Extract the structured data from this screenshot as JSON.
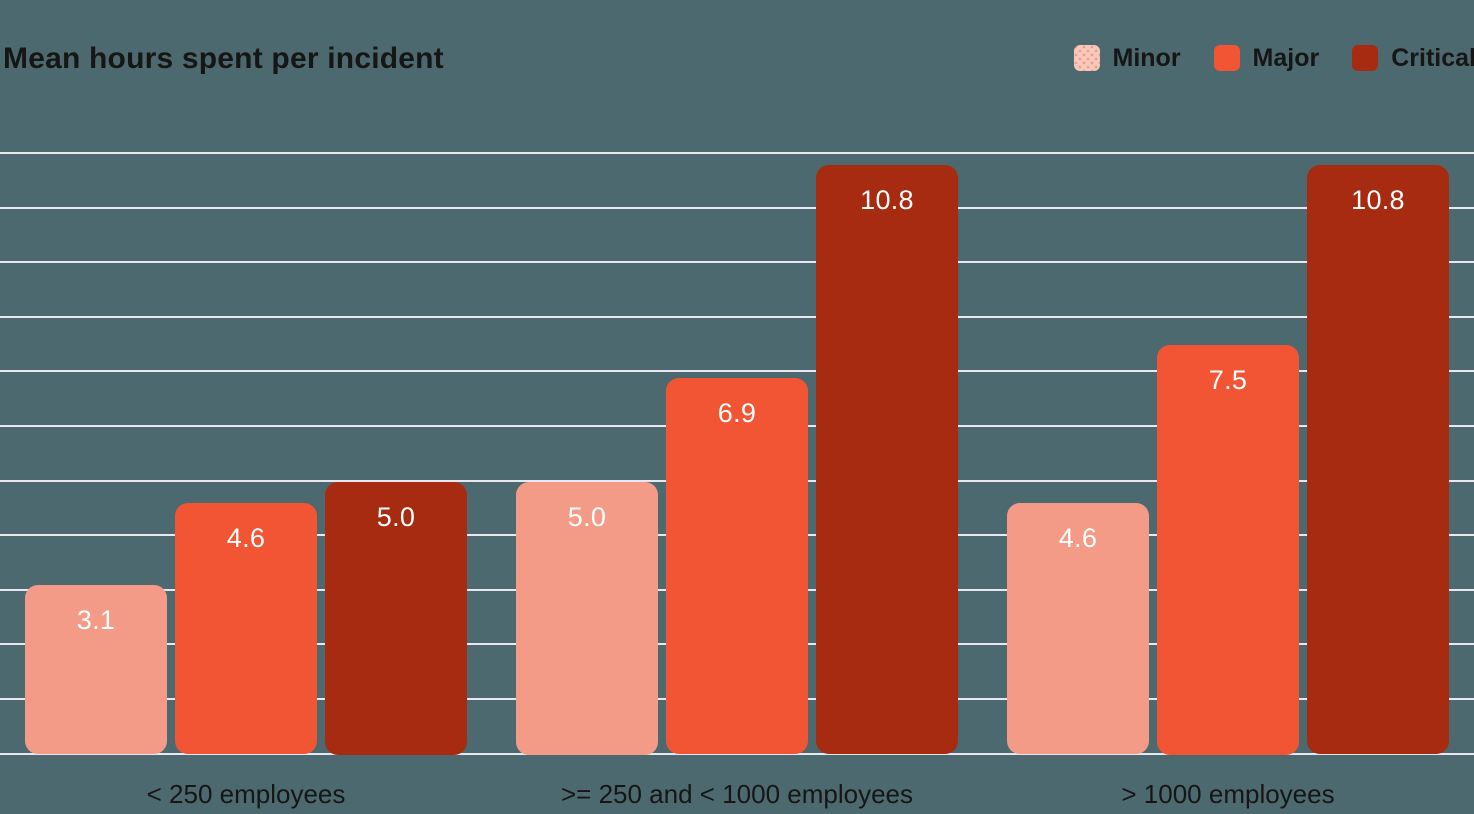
{
  "title": "Mean hours spent per incident",
  "legend": {
    "items": [
      {
        "label": "Minor",
        "color": "#F49B87",
        "pattern": "dotted",
        "swatch_base": "#F8C9BB",
        "swatch_dot": "#EE9E88"
      },
      {
        "label": "Major",
        "color": "#F15534",
        "pattern": "solid"
      },
      {
        "label": "Critical",
        "color": "#A62B10",
        "pattern": "solid"
      }
    ]
  },
  "chart_data": {
    "type": "bar",
    "title": "Mean hours spent per incident",
    "categories": [
      "< 250 employees",
      ">= 250 and < 1000 employees",
      "> 1000 employees"
    ],
    "series": [
      {
        "name": "Minor",
        "color": "#F49B87",
        "values": [
          3.1,
          5.0,
          4.6
        ]
      },
      {
        "name": "Major",
        "color": "#F15534",
        "values": [
          4.6,
          6.9,
          7.5
        ]
      },
      {
        "name": "Critical",
        "color": "#A62B10",
        "values": [
          5.0,
          10.8,
          10.8
        ]
      }
    ],
    "xlabel": "",
    "ylabel": "",
    "ylim": [
      0,
      11
    ],
    "gridline_step": 1,
    "grid": true,
    "y_axis_labels_visible": false,
    "legend_position": "top-right",
    "value_labels": true,
    "value_label_decimals": 1
  },
  "colors": {
    "background": "#4D6970",
    "gridline": "#E9E7F0",
    "text_dark": "#161616",
    "value_label": "#FFFFFF"
  }
}
